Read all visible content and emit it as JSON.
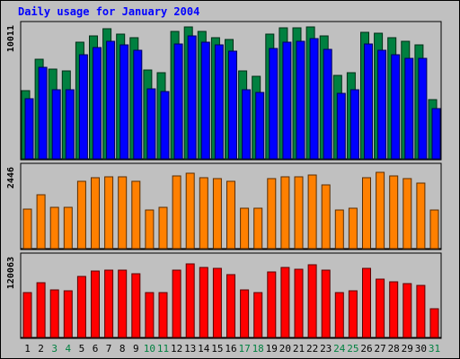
{
  "chart_data": {
    "type": "bar",
    "title": "Daily usage for January 2004",
    "categories": [
      "1",
      "2",
      "3",
      "4",
      "5",
      "6",
      "7",
      "8",
      "9",
      "10",
      "11",
      "12",
      "13",
      "14",
      "15",
      "16",
      "17",
      "18",
      "19",
      "20",
      "21",
      "22",
      "23",
      "24",
      "25",
      "26",
      "27",
      "28",
      "29",
      "30",
      "31"
    ],
    "weekend_days": [
      "3",
      "4",
      "10",
      "11",
      "17",
      "18",
      "24",
      "25",
      "31"
    ],
    "panels": [
      {
        "id": "top",
        "ymax": 10011,
        "ymax_label": "10011",
        "series": [
          {
            "color": "#008040",
            "values": [
              5150,
              7590,
              6830,
              6660,
              8850,
              9360,
              9900,
              9470,
              9220,
              6710,
              6530,
              9650,
              10011,
              9690,
              9180,
              9050,
              6640,
              6280,
              9470,
              9930,
              9970,
              10011,
              9300,
              6320,
              6530,
              9600,
              9520,
              9200,
              8950,
              8680,
              4470
            ]
          },
          {
            "color": "#0000ff",
            "values": [
              4590,
              6930,
              5210,
              5210,
              7870,
              8440,
              8930,
              8620,
              8250,
              5280,
              5130,
              8700,
              9350,
              8860,
              8670,
              8180,
              5210,
              5010,
              8350,
              8880,
              8920,
              9140,
              8300,
              5000,
              5210,
              8750,
              8270,
              7870,
              7620,
              7610,
              3780
            ]
          }
        ]
      },
      {
        "id": "middle",
        "ymax": 2446,
        "ymax_label": "2446",
        "series": [
          {
            "color": "#ff8000",
            "values": [
              1200,
              1640,
              1270,
              1270,
              2060,
              2170,
              2200,
              2200,
              2060,
              1190,
              1270,
              2230,
              2300,
              2160,
              2130,
              2060,
              1240,
              1230,
              2150,
              2190,
              2190,
              2250,
              1940,
              1190,
              1250,
              2170,
              2340,
              2230,
              2130,
              2010,
              1170
            ]
          }
        ]
      },
      {
        "id": "bottom",
        "ymax": 120063,
        "ymax_label": "120063",
        "series": [
          {
            "color": "#ff0000",
            "values": [
              67700,
              83000,
              72000,
              70300,
              93000,
              101000,
              103000,
              102000,
              97000,
              68500,
              68500,
              102000,
              112000,
              107000,
              105000,
              96000,
              72000,
              68000,
              99000,
              106000,
              104000,
              110000,
              102000,
              68000,
              70300,
              105000,
              89000,
              85000,
              81600,
              79400,
              43000
            ]
          }
        ]
      }
    ]
  }
}
